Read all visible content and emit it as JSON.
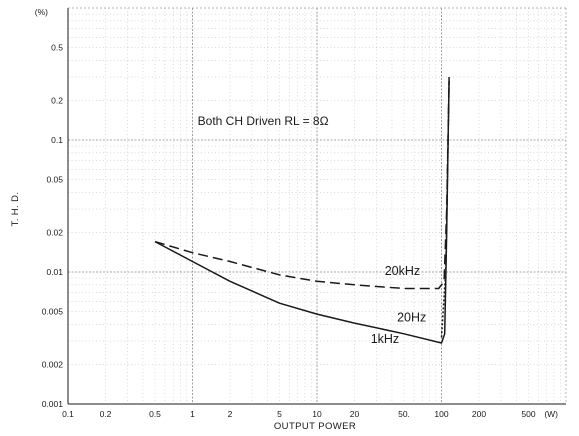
{
  "chart_data": {
    "type": "line",
    "title": "",
    "annotation": "Both CH Driven RL = 8Ω",
    "xlabel": "OUTPUT POWER",
    "ylabel": "T. H. D.",
    "x_unit": "(W)",
    "y_unit": "(%)",
    "xscale": "log",
    "yscale": "log",
    "xlim": [
      0.1,
      1000
    ],
    "ylim": [
      0.001,
      1
    ],
    "grid": "on",
    "legend": "none",
    "x_ticks": [
      {
        "v": 0.1,
        "label": "0.1"
      },
      {
        "v": 0.2,
        "label": "0.2"
      },
      {
        "v": 0.5,
        "label": "0.5"
      },
      {
        "v": 1,
        "label": "1"
      },
      {
        "v": 2,
        "label": "2"
      },
      {
        "v": 5,
        "label": "5"
      },
      {
        "v": 10,
        "label": "10"
      },
      {
        "v": 20,
        "label": "20"
      },
      {
        "v": 50,
        "label": "50."
      },
      {
        "v": 100,
        "label": "100"
      },
      {
        "v": 200,
        "label": "200"
      },
      {
        "v": 500,
        "label": "500"
      }
    ],
    "y_ticks": [
      {
        "v": 0.001,
        "label": "0.001"
      },
      {
        "v": 0.002,
        "label": "0.002"
      },
      {
        "v": 0.005,
        "label": "0.005"
      },
      {
        "v": 0.01,
        "label": "0.01"
      },
      {
        "v": 0.02,
        "label": "0.02"
      },
      {
        "v": 0.05,
        "label": "0.05"
      },
      {
        "v": 0.1,
        "label": "0.1"
      },
      {
        "v": 0.2,
        "label": "0.2"
      },
      {
        "v": 0.5,
        "label": "0.5"
      }
    ],
    "series": [
      {
        "name": "20kHz",
        "style": "dashed",
        "color": "#1a1a1a",
        "x": [
          0.5,
          1,
          2,
          5,
          10,
          20,
          50,
          95,
          105,
          110,
          115
        ],
        "y": [
          0.017,
          0.014,
          0.012,
          0.0095,
          0.0085,
          0.008,
          0.0075,
          0.0075,
          0.0085,
          0.03,
          0.28
        ]
      },
      {
        "name": "20Hz",
        "style": "dotted",
        "color": "#1a1a1a",
        "x": [
          100,
          108,
          112,
          115
        ],
        "y": [
          0.0032,
          0.01,
          0.06,
          0.28
        ]
      },
      {
        "name": "1kHz",
        "style": "solid",
        "color": "#1a1a1a",
        "x": [
          0.5,
          1,
          2,
          5,
          10,
          20,
          50,
          100,
          106,
          110,
          115
        ],
        "y": [
          0.017,
          0.012,
          0.0085,
          0.0058,
          0.0048,
          0.0041,
          0.0034,
          0.0029,
          0.0034,
          0.02,
          0.3
        ]
      }
    ]
  }
}
